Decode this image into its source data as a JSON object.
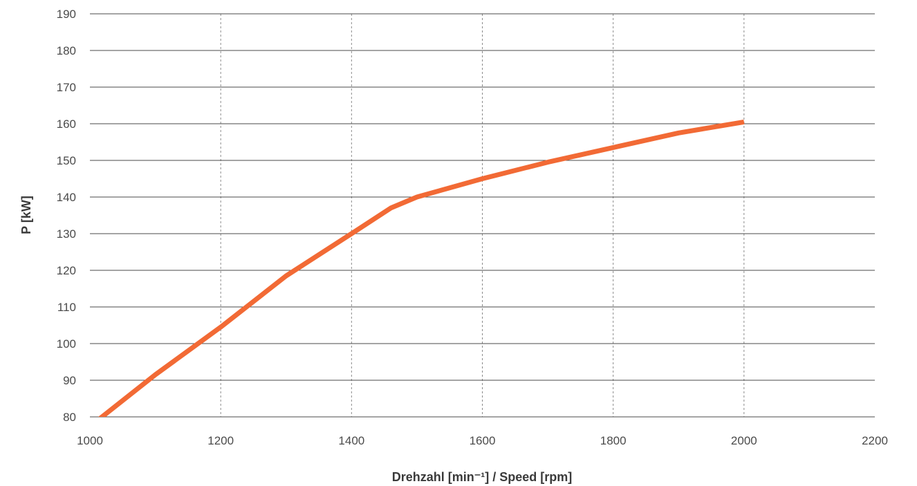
{
  "chart_data": {
    "type": "line",
    "xlabel": "Drehzahl [min⁻¹] / Speed [rpm]",
    "ylabel": "P [kW]",
    "xlim": [
      1000,
      2200
    ],
    "ylim": [
      80,
      190
    ],
    "x_ticks": [
      "1000",
      "1200",
      "1400",
      "1600",
      "1800",
      "2000",
      "2200"
    ],
    "y_ticks": [
      "80",
      "90",
      "100",
      "110",
      "120",
      "130",
      "140",
      "150",
      "160",
      "170",
      "180",
      "190"
    ],
    "grid": {
      "horizontal": "solid",
      "vertical": "dashed"
    },
    "line_color": "#F26A35",
    "series": [
      {
        "x": [
          1015,
          1100,
          1200,
          1300,
          1400,
          1460,
          1500,
          1600,
          1700,
          1800,
          1900,
          2000
        ],
        "y": [
          79.5,
          91.5,
          104.5,
          118.5,
          130,
          137,
          140,
          145,
          149.5,
          153.5,
          157.5,
          160.5
        ]
      }
    ]
  }
}
